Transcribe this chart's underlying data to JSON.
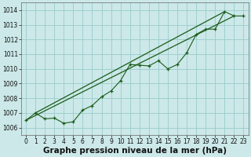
{
  "x": [
    0,
    1,
    2,
    3,
    4,
    5,
    6,
    7,
    8,
    9,
    10,
    11,
    12,
    13,
    14,
    15,
    16,
    17,
    18,
    19,
    20,
    21,
    22,
    23
  ],
  "y_data": [
    1006.5,
    1007.0,
    1006.6,
    1006.65,
    1006.3,
    1006.4,
    1007.2,
    1007.5,
    1008.1,
    1008.5,
    1009.2,
    1010.3,
    1010.25,
    1010.2,
    1010.55,
    1010.0,
    1010.3,
    1011.1,
    1012.35,
    1012.7,
    1012.7,
    1013.9,
    1013.6,
    1013.6
  ],
  "trend1_x": [
    0,
    22
  ],
  "trend1_y": [
    1006.5,
    1013.6
  ],
  "trend2_x": [
    1,
    21
  ],
  "trend2_y": [
    1007.0,
    1013.9
  ],
  "ylim": [
    1005.5,
    1014.5
  ],
  "yticks": [
    1006,
    1007,
    1008,
    1009,
    1010,
    1011,
    1012,
    1013,
    1014
  ],
  "xticks": [
    0,
    1,
    2,
    3,
    4,
    5,
    6,
    7,
    8,
    9,
    10,
    11,
    12,
    13,
    14,
    15,
    16,
    17,
    18,
    19,
    20,
    21,
    22,
    23
  ],
  "xlabel": "Graphe pression niveau de la mer (hPa)",
  "bg_color": "#cce8e8",
  "grid_color": "#99cccc",
  "line_color": "#1a5c1a",
  "tick_fontsize": 5.5,
  "xlabel_fontsize": 7.5
}
